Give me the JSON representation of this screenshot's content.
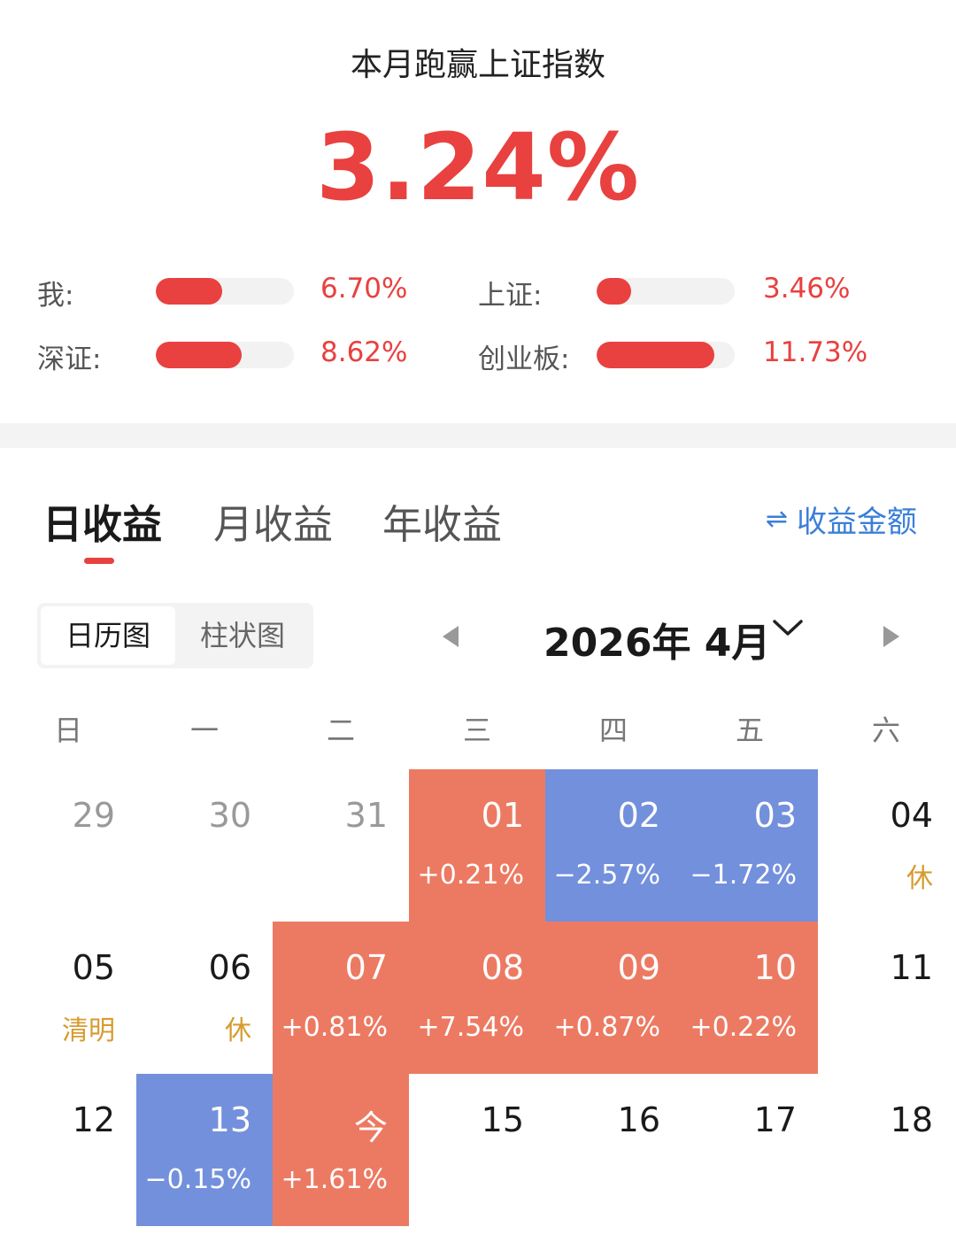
{
  "summary": {
    "title": "本月跑赢上证指数",
    "value": "3.24%",
    "comparisons": [
      {
        "label": "我:",
        "value": "6.70%",
        "fill": 0.48
      },
      {
        "label": "上证:",
        "value": "3.46%",
        "fill": 0.25
      },
      {
        "label": "深证:",
        "value": "8.62%",
        "fill": 0.62
      },
      {
        "label": "创业板:",
        "value": "11.73%",
        "fill": 0.85
      }
    ]
  },
  "tabs": {
    "items": [
      "日收益",
      "月收益",
      "年收益"
    ],
    "active": 0,
    "switch_label": "收益金额"
  },
  "view_toggle": {
    "items": [
      "日历图",
      "柱状图"
    ],
    "active": 0
  },
  "month": {
    "label": "2026年 4月"
  },
  "weekdays": [
    "日",
    "一",
    "二",
    "三",
    "四",
    "五",
    "六"
  ],
  "calendar": {
    "rows": [
      [
        {
          "day": "29",
          "other": true
        },
        {
          "day": "30",
          "other": true
        },
        {
          "day": "31",
          "other": true
        },
        {
          "day": "01",
          "change": "+0.21%",
          "dir": "up"
        },
        {
          "day": "02",
          "change": "−2.57%",
          "dir": "down"
        },
        {
          "day": "03",
          "change": "−1.72%",
          "dir": "down"
        },
        {
          "day": "04",
          "note": "休"
        }
      ],
      [
        {
          "day": "05",
          "note": "清明"
        },
        {
          "day": "06",
          "note": "休"
        },
        {
          "day": "07",
          "change": "+0.81%",
          "dir": "up"
        },
        {
          "day": "08",
          "change": "+7.54%",
          "dir": "up"
        },
        {
          "day": "09",
          "change": "+0.87%",
          "dir": "up"
        },
        {
          "day": "10",
          "change": "+0.22%",
          "dir": "up"
        },
        {
          "day": "11"
        }
      ],
      [
        {
          "day": "12"
        },
        {
          "day": "13",
          "change": "−0.15%",
          "dir": "down"
        },
        {
          "day": "今",
          "change": "+1.61%",
          "dir": "up"
        },
        {
          "day": "15"
        },
        {
          "day": "16"
        },
        {
          "day": "17"
        },
        {
          "day": "18"
        }
      ]
    ]
  },
  "colors": {
    "accent_red": "#e8413f",
    "up_cell": "#ec7a62",
    "down_cell": "#7390dc",
    "link_blue": "#3b7fd8",
    "holiday_note": "#d69b2f"
  },
  "icons": {
    "switch": "swap-arrows-icon",
    "prev": "triangle-left-icon",
    "next": "triangle-right-icon",
    "month_dropdown": "chevron-down-icon"
  }
}
